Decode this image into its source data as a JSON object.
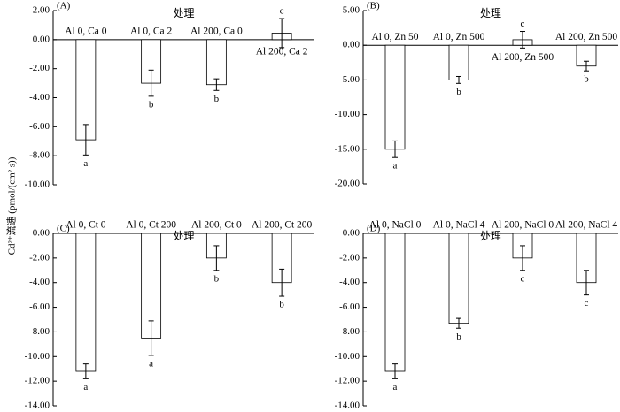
{
  "y_label": "Cd²⁺流速 (pmol/(cm² s))",
  "chart_data": [
    {
      "type": "bar",
      "panel_label": "(A)",
      "x_label": "处理",
      "color": "#ffffff",
      "categories": [
        "Al 0, Ca 0",
        "Al 0, Ca 2",
        "Al 200, Ca 0",
        "Al 200, Ca 2"
      ],
      "values": [
        -6.9,
        -3.0,
        -3.1,
        0.45
      ],
      "errors": [
        1.05,
        0.9,
        0.4,
        1.0
      ],
      "annotations": [
        "a",
        "b",
        "b",
        "c"
      ],
      "ylim": [
        -10,
        2
      ],
      "yticks": [
        {
          "value": -10,
          "label": "-10.00"
        },
        {
          "value": -8,
          "label": "-8.00"
        },
        {
          "value": -6,
          "label": "-6.00"
        },
        {
          "value": -4,
          "label": "-4.00"
        },
        {
          "value": -2,
          "label": "-2.00"
        },
        {
          "value": 0,
          "label": "0.00"
        },
        {
          "value": 2,
          "label": "2.00"
        }
      ]
    },
    {
      "type": "bar",
      "panel_label": "(B)",
      "x_label": "处理",
      "color": "#ffffff",
      "categories": [
        "Al 0, Zn 50",
        "Al 0, Zn 500",
        "Al 200, Zn 500",
        "Al 200, Zn 500"
      ],
      "values": [
        -15.0,
        -5.0,
        0.8,
        -3.0
      ],
      "errors": [
        1.2,
        0.5,
        1.2,
        0.7
      ],
      "annotations": [
        "a",
        "b",
        "c",
        "b"
      ],
      "ylim": [
        -20,
        5
      ],
      "yticks": [
        {
          "value": -20,
          "label": "-20.00"
        },
        {
          "value": -15,
          "label": "-15.00"
        },
        {
          "value": -10,
          "label": "-10.00"
        },
        {
          "value": -5,
          "label": "-5.00"
        },
        {
          "value": 0,
          "label": "0.00"
        },
        {
          "value": 5,
          "label": "5.00"
        }
      ]
    },
    {
      "type": "bar",
      "panel_label": "(C)",
      "x_label": "处理",
      "color": "#ffffff",
      "categories": [
        "Al 0, Ct 0",
        "Al 0, Ct 200",
        "Al 200, Ct 0",
        "Al 200, Ct 200"
      ],
      "values": [
        -11.2,
        -8.5,
        -2.0,
        -4.0
      ],
      "errors": [
        0.6,
        1.4,
        1.0,
        1.1
      ],
      "annotations": [
        "a",
        "a",
        "b",
        "b"
      ],
      "ylim": [
        -14,
        0
      ],
      "yticks": [
        {
          "value": -14,
          "label": "-14.00"
        },
        {
          "value": -12,
          "label": "-12.00"
        },
        {
          "value": -10,
          "label": "-10.00"
        },
        {
          "value": -8,
          "label": "-8.00"
        },
        {
          "value": -6,
          "label": "-6.00"
        },
        {
          "value": -4,
          "label": "-4.00"
        },
        {
          "value": -2,
          "label": "-2.00"
        },
        {
          "value": 0,
          "label": "0.00"
        }
      ]
    },
    {
      "type": "bar",
      "panel_label": "(D)",
      "x_label": "处理",
      "color": "#ffffff",
      "categories": [
        "Al 0, NaCl 0",
        "Al 0, NaCl 4",
        "Al 200, NaCl 0",
        "Al 200, NaCl 4"
      ],
      "values": [
        -11.2,
        -7.3,
        -2.0,
        -4.0
      ],
      "errors": [
        0.6,
        0.4,
        1.0,
        1.0
      ],
      "annotations": [
        "a",
        "b",
        "c",
        "c"
      ],
      "ylim": [
        -14,
        0
      ],
      "yticks": [
        {
          "value": -14,
          "label": "-14.00"
        },
        {
          "value": -12,
          "label": "-12.00"
        },
        {
          "value": -10,
          "label": "-10.00"
        },
        {
          "value": -8,
          "label": "-8.00"
        },
        {
          "value": -6,
          "label": "-6.00"
        },
        {
          "value": -4,
          "label": "-4.00"
        },
        {
          "value": -2,
          "label": "-2.00"
        },
        {
          "value": 0,
          "label": "0.00"
        }
      ]
    }
  ]
}
